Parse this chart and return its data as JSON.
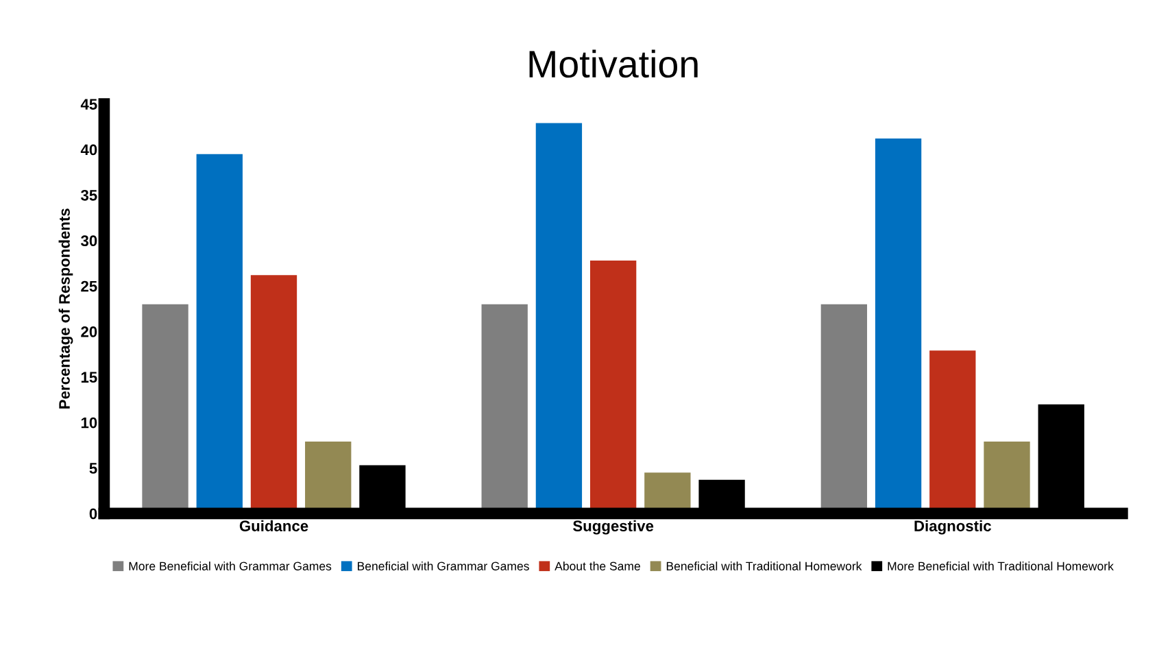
{
  "chart_data": {
    "type": "bar",
    "title": "Motivation",
    "ylabel": "Percentage of Respondents",
    "categories": [
      "Guidance",
      "Suggestive",
      "Diagnostic"
    ],
    "series": [
      {
        "name": "More Beneficial with Grammar Games",
        "color": "#7f7f7f",
        "values": [
          23,
          23,
          23
        ]
      },
      {
        "name": "Beneficial with Grammar Games",
        "color": "#0070c0",
        "values": [
          39.5,
          42.9,
          41.2
        ]
      },
      {
        "name": "About the Same",
        "color": "#c0301a",
        "values": [
          26.2,
          27.8,
          17.9
        ]
      },
      {
        "name": "Beneficial with Traditional Homework",
        "color": "#938953",
        "values": [
          7.9,
          4.5,
          7.9
        ]
      },
      {
        "name": "More Beneficial with Traditional Homework",
        "color": "#000000",
        "values": [
          5.3,
          3.7,
          12.0
        ]
      }
    ],
    "ylim": [
      0,
      45
    ],
    "yticks": [
      0,
      5,
      10,
      15,
      20,
      25,
      30,
      35,
      40,
      45
    ],
    "grid": false,
    "legend": "bottom"
  }
}
